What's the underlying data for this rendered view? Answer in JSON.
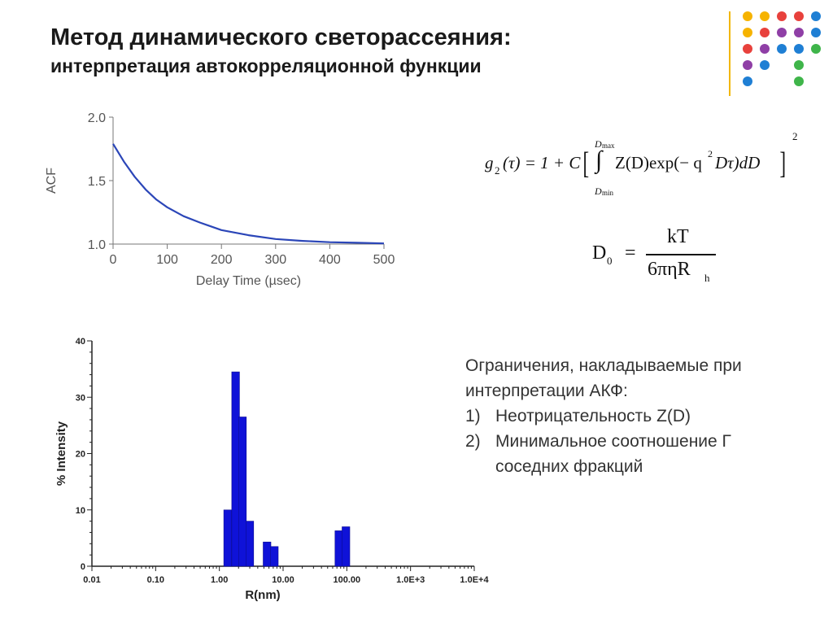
{
  "title": "Метод динамического светорассеяния:",
  "subtitle": "интерпретация автокорреляционной функции",
  "decoration": {
    "dots": [
      [
        "#f6b300",
        "#f6b300",
        "#e8413c",
        "#e8413c",
        "#1f7fd4"
      ],
      [
        "#f6b300",
        "#e8413c",
        "#8f3fa6",
        "#8f3fa6",
        "#1f7fd4"
      ],
      [
        "#e8413c",
        "#8f3fa6",
        "#1f7fd4",
        "#1f7fd4",
        "#3fb54a"
      ],
      [
        "#8f3fa6",
        "#1f7fd4",
        "",
        "#3fb54a",
        ""
      ],
      [
        "#1f7fd4",
        "",
        "",
        "#3fb54a",
        ""
      ]
    ],
    "line_color": "#f2b705"
  },
  "formula1": {
    "lhs": "g",
    "lhs_sub": "2",
    "arg": "(τ) = 1 + C",
    "int_upper": "D",
    "int_upper_sub": "max",
    "int_lower": "D",
    "int_lower_sub": "min",
    "integrand": "Z(D)exp(− q",
    "q_power": "2",
    "integrand_end": "Dτ)dD",
    "outer_power": "2"
  },
  "formula2": {
    "lhs": "D",
    "lhs_sub": "0",
    "equals": "=",
    "numerator": "kT",
    "denominator": "6πηR",
    "denominator_sub": "h"
  },
  "limitations": {
    "intro": "Ограничения, накладываемые при интерпретации АКФ:",
    "items": [
      {
        "num": "1)",
        "text": "Неотрицательность Z(D)"
      },
      {
        "num": "2)",
        "text": "Минимальное соотношение Г соседних фракций"
      }
    ]
  },
  "chart_data": [
    {
      "type": "line",
      "xlabel": "Delay Time (µsec)",
      "ylabel": "ACF",
      "xlim": [
        0,
        500
      ],
      "ylim": [
        1.0,
        2.0
      ],
      "x_ticks": [
        "0",
        "100",
        "200",
        "300",
        "400",
        "500"
      ],
      "y_ticks": [
        "1.0",
        "1.5",
        "2.0"
      ],
      "series": [
        {
          "color": "#2b46b8",
          "x": [
            0,
            20,
            40,
            60,
            80,
            100,
            130,
            160,
            200,
            250,
            300,
            350,
            400,
            450,
            500
          ],
          "y": [
            1.79,
            1.65,
            1.53,
            1.43,
            1.35,
            1.29,
            1.22,
            1.17,
            1.11,
            1.07,
            1.04,
            1.025,
            1.015,
            1.01,
            1.005
          ]
        }
      ]
    },
    {
      "type": "bar",
      "xlabel": "R(nm)",
      "ylabel": "% Intensity",
      "x_scale": "log",
      "xlim": [
        0.01,
        10000
      ],
      "ylim": [
        0,
        40
      ],
      "x_ticks": [
        "0.01",
        "0.10",
        "1.00",
        "10.00",
        "100.00",
        "1.0E+3",
        "1.0E+4"
      ],
      "y_ticks": [
        "0",
        "10",
        "20",
        "30",
        "40"
      ],
      "bar_color": "#0f12d8",
      "bars": [
        {
          "r": 1.35,
          "value": 10
        },
        {
          "r": 1.8,
          "value": 34.5
        },
        {
          "r": 2.3,
          "value": 26.5
        },
        {
          "r": 3.0,
          "value": 8
        },
        {
          "r": 5.6,
          "value": 4.3
        },
        {
          "r": 7.3,
          "value": 3.5
        },
        {
          "r": 75,
          "value": 6.3
        },
        {
          "r": 97,
          "value": 7
        }
      ]
    }
  ]
}
